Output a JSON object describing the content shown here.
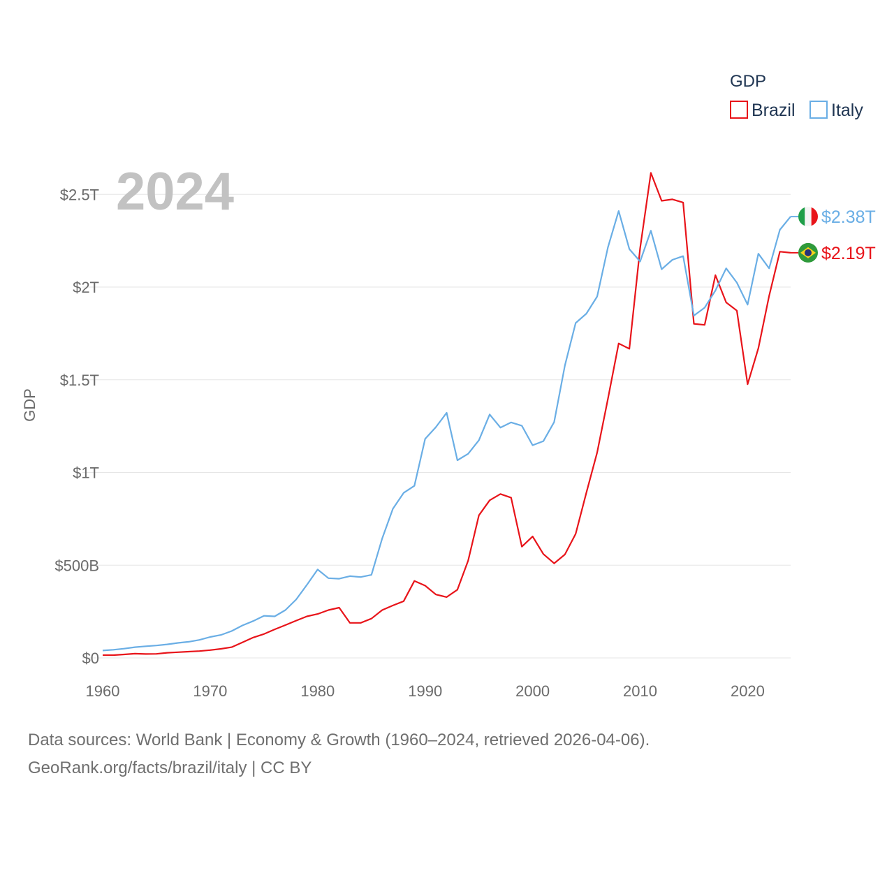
{
  "chart_data": {
    "type": "line",
    "title": "",
    "year_label": "2024",
    "xlabel": "",
    "ylabel": "GDP",
    "xlim": [
      1960,
      2024
    ],
    "ylim": [
      0,
      2600000000000
    ],
    "x_ticks": [
      {
        "value": 1960,
        "label": "1960"
      },
      {
        "value": 1970,
        "label": "1970"
      },
      {
        "value": 1980,
        "label": "1980"
      },
      {
        "value": 1990,
        "label": "1990"
      },
      {
        "value": 2000,
        "label": "2000"
      },
      {
        "value": 2010,
        "label": "2010"
      },
      {
        "value": 2020,
        "label": "2020"
      }
    ],
    "y_ticks": [
      {
        "value": 0,
        "label": "$0"
      },
      {
        "value": 500000000000,
        "label": "$500B"
      },
      {
        "value": 1000000000000,
        "label": "$1T"
      },
      {
        "value": 1500000000000,
        "label": "$1.5T"
      },
      {
        "value": 2000000000000,
        "label": "$2T"
      },
      {
        "value": 2500000000000,
        "label": "$2.5T"
      }
    ],
    "legend": {
      "title": "GDP",
      "position": "top-right"
    },
    "x": [
      1960,
      1961,
      1962,
      1963,
      1964,
      1965,
      1966,
      1967,
      1968,
      1969,
      1970,
      1971,
      1972,
      1973,
      1974,
      1975,
      1976,
      1977,
      1978,
      1979,
      1980,
      1981,
      1982,
      1983,
      1984,
      1985,
      1986,
      1987,
      1988,
      1989,
      1990,
      1991,
      1992,
      1993,
      1994,
      1995,
      1996,
      1997,
      1998,
      1999,
      2000,
      2001,
      2002,
      2003,
      2004,
      2005,
      2006,
      2007,
      2008,
      2009,
      2010,
      2011,
      2012,
      2013,
      2014,
      2015,
      2016,
      2017,
      2018,
      2019,
      2020,
      2021,
      2022,
      2023,
      2024
    ],
    "series": [
      {
        "name": "Brazil",
        "color": "#e8141a",
        "flag": "brazil-flag",
        "end_label": "$2.19T",
        "values": [
          15000000000.0,
          15000000000.0,
          19000000000.0,
          23000000000.0,
          21000000000.0,
          22000000000.0,
          28000000000.0,
          31000000000.0,
          34000000000.0,
          37000000000.0,
          42000000000.0,
          49000000000.0,
          58000000000.0,
          84000000000.0,
          110000000000.0,
          129000000000.0,
          154000000000.0,
          177000000000.0,
          201000000000.0,
          224000000000.0,
          237000000000.0,
          258000000000.0,
          271000000000.0,
          189000000000.0,
          189000000000.0,
          212000000000.0,
          258000000000.0,
          283000000000.0,
          306000000000.0,
          415000000000.0,
          390000000000.0,
          342000000000.0,
          328000000000.0,
          368000000000.0,
          525000000000.0,
          769000000000.0,
          850000000000.0,
          884000000000.0,
          864000000000.0,
          600000000000.0,
          655000000000.0,
          560000000000.0,
          510000000000.0,
          558000000000.0,
          669000000000.0,
          892000000000.0,
          1108000000000.0,
          1397000000000.0,
          1696000000000.0,
          1667000000000.0,
          2209000000000.0,
          2616000000000.0,
          2465000000000.0,
          2473000000000.0,
          2456000000000.0,
          1802000000000.0,
          1796000000000.0,
          2064000000000.0,
          1917000000000.0,
          1873000000000.0,
          1476000000000.0,
          1670000000000.0,
          1952000000000.0,
          2191000000000.0,
          2185000000000.0
        ]
      },
      {
        "name": "Italy",
        "color": "#6aaee5",
        "flag": "italy-flag",
        "end_label": "$2.38T",
        "values": [
          40000000000.0,
          44000000000.0,
          50000000000.0,
          58000000000.0,
          63000000000.0,
          67000000000.0,
          73000000000.0,
          81000000000.0,
          87000000000.0,
          97000000000.0,
          113000000000.0,
          124000000000.0,
          145000000000.0,
          175000000000.0,
          199000000000.0,
          227000000000.0,
          224000000000.0,
          258000000000.0,
          315000000000.0,
          394000000000.0,
          477000000000.0,
          430000000000.0,
          427000000000.0,
          441000000000.0,
          436000000000.0,
          448000000000.0,
          644000000000.0,
          804000000000.0,
          890000000000.0,
          928000000000.0,
          1181000000000.0,
          1245000000000.0,
          1322000000000.0,
          1066000000000.0,
          1101000000000.0,
          1174000000000.0,
          1313000000000.0,
          1242000000000.0,
          1270000000000.0,
          1252000000000.0,
          1147000000000.0,
          1169000000000.0,
          1272000000000.0,
          1577000000000.0,
          1806000000000.0,
          1857000000000.0,
          1949000000000.0,
          2214000000000.0,
          2410000000000.0,
          2205000000000.0,
          2138000000000.0,
          2304000000000.0,
          2096000000000.0,
          2147000000000.0,
          2167000000000.0,
          1846000000000.0,
          1889000000000.0,
          1981000000000.0,
          2101000000000.0,
          2024000000000.0,
          1905000000000.0,
          2180000000000.0,
          2101000000000.0,
          2309000000000.0,
          2380000000000.0
        ]
      }
    ]
  },
  "footer": {
    "line1": "Data sources: World Bank | Economy & Growth (1960–2024, retrieved 2026-04-06).",
    "line2": "GeoRank.org/facts/brazil/italy | CC BY"
  }
}
